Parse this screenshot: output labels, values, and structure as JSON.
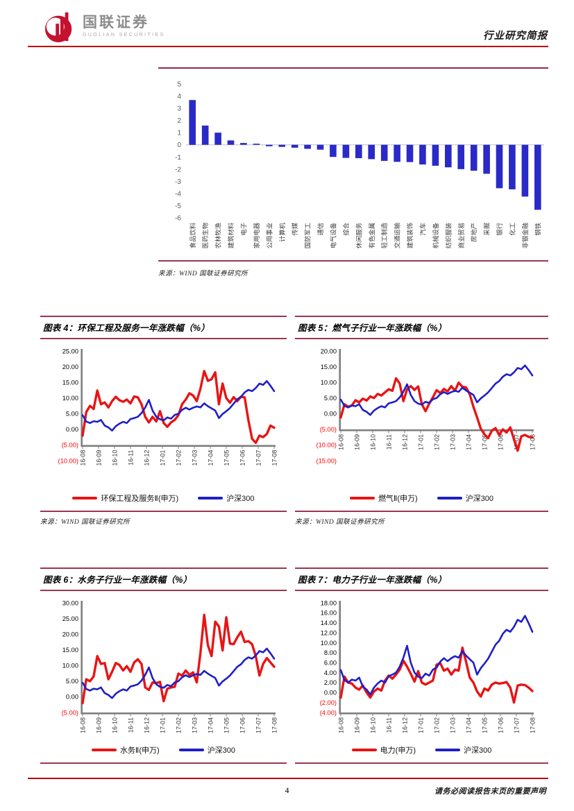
{
  "header": {
    "brand_cn": "国联证券",
    "brand_en": "GUOLIAN SECURITIES",
    "doc_type": "行业研究简报"
  },
  "source_label": "来源：WIND  国联证券研究所",
  "footer": {
    "page_number": "4",
    "disclaimer": "请务必阅读报告末页的重要声明"
  },
  "colors": {
    "header_rule": "#c00000",
    "box_border": "#9c3550",
    "bar_fill": "#2a2ac8",
    "series_red": "#e81414",
    "series_blue": "#1e1ec8",
    "negative_tick": "#ff0000",
    "axis_gray": "#7f7f7f"
  },
  "figures": [
    {
      "id": "4",
      "title": "图表 4：环保工程及服务一年涨跌幅（%）"
    },
    {
      "id": "5",
      "title": "图表 5：燃气子行业一年涨跌幅（%）"
    },
    {
      "id": "6",
      "title": "图表 6：水务子行业一年涨跌幅（%）"
    },
    {
      "id": "7",
      "title": "图表 7：电力子行业一年涨跌幅（%）"
    }
  ],
  "chart_data": [
    {
      "type": "bar",
      "title": "",
      "categories": [
        "食品饮料",
        "医药生物",
        "农林牧渔",
        "建筑材料",
        "电子",
        "家用电器",
        "公用事业",
        "计算机",
        "传媒",
        "国防军工",
        "通信",
        "电气设备",
        "综合",
        "休闲服务",
        "有色金属",
        "轻工制造",
        "交通运输",
        "建筑装饰",
        "汽车",
        "机械设备",
        "纺织服装",
        "商业贸易",
        "房地产",
        "采掘",
        "银行",
        "化工",
        "非银金融",
        "钢铁"
      ],
      "values": [
        3.68,
        1.58,
        1.0,
        0.36,
        0.15,
        0.09,
        -0.12,
        -0.17,
        -0.24,
        -0.33,
        -0.4,
        -1.0,
        -1.08,
        -1.1,
        -1.18,
        -1.32,
        -1.4,
        -1.42,
        -1.62,
        -1.72,
        -1.85,
        -2.0,
        -2.13,
        -2.38,
        -3.57,
        -3.66,
        -4.26,
        -5.34
      ],
      "ylim": [
        -6,
        5
      ],
      "ystep": 1,
      "bar_color": "#2a2ac8",
      "grid": false,
      "legend": "none"
    },
    {
      "type": "line",
      "title": "环保工程及服务一年涨跌幅（%）",
      "x_labels": [
        "16-08",
        "16-09",
        "16-10",
        "16-11",
        "16-12",
        "17-01",
        "17-02",
        "17-03",
        "17-04",
        "17-05",
        "17-06",
        "17-07",
        "17-08"
      ],
      "ymin": -10,
      "ymax": 25,
      "ystep": 5,
      "axis_cross_y": -5,
      "legend_position": "bottom",
      "series": [
        {
          "name": "环保工程及服务Ⅱ(申万)",
          "color": "#e81414",
          "values": [
            -2.0,
            5.5,
            7.5,
            6.5,
            12.4,
            8.0,
            8.6,
            7.0,
            9.0,
            10.4,
            9.3,
            8.8,
            9.5,
            8.3,
            10.5,
            10.2,
            8.0,
            4.0,
            2.2,
            4.0,
            2.5,
            5.8,
            2.0,
            0.8,
            2.2,
            3.0,
            4.5,
            8.0,
            9.5,
            11.5,
            10.8,
            9.0,
            13.0,
            18.6,
            15.5,
            16.0,
            18.2,
            8.0,
            14.6,
            10.0,
            8.5,
            10.3,
            9.0,
            10.4,
            10.2,
            3.0,
            -3.0,
            -4.3,
            -2.0,
            -2.5,
            -1.5,
            1.2,
            0.5
          ]
        },
        {
          "name": "沪深300",
          "color": "#1e1ec8",
          "values": [
            4.5,
            2.5,
            2.0,
            2.6,
            2.4,
            3.0,
            1.2,
            0.6,
            -0.4,
            1.0,
            1.8,
            2.4,
            2.0,
            3.3,
            3.6,
            4.0,
            5.2,
            7.0,
            9.4,
            6.0,
            4.0,
            3.2,
            2.9,
            3.8,
            3.4,
            4.6,
            5.0,
            6.2,
            6.9,
            6.3,
            6.9,
            7.3,
            7.0,
            8.3,
            7.4,
            6.7,
            6.0,
            3.6,
            4.9,
            5.8,
            6.8,
            8.2,
            9.6,
            10.4,
            11.8,
            12.6,
            12.2,
            13.2,
            14.6,
            14.2,
            15.4,
            13.9,
            12.2
          ]
        }
      ]
    },
    {
      "type": "line",
      "title": "燃气子行业一年涨跌幅（%）",
      "x_labels": [
        "16-08",
        "16-09",
        "16-10",
        "16-11",
        "16-12",
        "17-01",
        "17-02",
        "17-03",
        "17-04",
        "17-05",
        "17-06",
        "17-07",
        "17-08"
      ],
      "ymin": -15,
      "ymax": 20,
      "ystep": 5,
      "axis_cross_y": -5,
      "legend_position": "bottom",
      "series": [
        {
          "name": "燃气Ⅱ(申万)",
          "color": "#e81414",
          "values": [
            -1.2,
            3.0,
            2.2,
            2.6,
            4.3,
            3.6,
            4.8,
            4.2,
            5.5,
            5.0,
            6.3,
            5.8,
            6.8,
            7.8,
            7.3,
            11.3,
            9.6,
            4.0,
            7.8,
            8.8,
            7.6,
            8.7,
            3.0,
            0.8,
            3.2,
            5.2,
            7.5,
            6.6,
            7.9,
            7.1,
            8.8,
            7.3,
            9.9,
            8.6,
            8.4,
            6.2,
            2.2,
            -1.2,
            -4.8,
            -6.6,
            -7.8,
            -5.4,
            -4.6,
            -6.8,
            -5.0,
            -6.0,
            -4.4,
            -8.2,
            -11.8,
            -7.2,
            -6.8,
            -7.4,
            -7.6
          ]
        },
        {
          "name": "沪深300",
          "color": "#1e1ec8",
          "values": [
            4.5,
            2.5,
            2.0,
            2.6,
            2.4,
            3.0,
            1.2,
            0.6,
            -0.4,
            1.0,
            1.8,
            2.4,
            2.0,
            3.3,
            3.6,
            4.0,
            5.2,
            7.0,
            9.4,
            6.0,
            4.0,
            3.2,
            2.9,
            3.8,
            3.4,
            4.6,
            5.0,
            6.2,
            6.9,
            6.3,
            6.9,
            7.3,
            7.0,
            8.3,
            7.4,
            6.7,
            6.0,
            3.6,
            4.9,
            5.8,
            6.8,
            8.2,
            9.6,
            10.4,
            11.8,
            12.6,
            12.2,
            13.2,
            14.6,
            14.2,
            15.4,
            13.9,
            12.2
          ]
        }
      ]
    },
    {
      "type": "line",
      "title": "水务子行业一年涨跌幅（%）",
      "x_labels": [
        "16-08",
        "16-09",
        "16-10",
        "16-11",
        "16-12",
        "17-01",
        "17-02",
        "17-03",
        "17-04",
        "17-05",
        "17-06",
        "17-07",
        "17-08"
      ],
      "ymin": -5,
      "ymax": 30,
      "ystep": 5,
      "axis_cross_y": -5,
      "legend_position": "bottom",
      "series": [
        {
          "name": "水务Ⅱ(申万)",
          "color": "#e81414",
          "values": [
            -2.0,
            5.6,
            5.0,
            6.5,
            13.0,
            10.5,
            10.8,
            5.6,
            8.0,
            10.8,
            10.2,
            8.4,
            9.8,
            8.0,
            11.0,
            12.0,
            10.5,
            3.0,
            2.2,
            4.6,
            4.4,
            4.8,
            -1.4,
            2.6,
            3.0,
            3.2,
            7.4,
            6.8,
            8.4,
            7.0,
            7.8,
            4.6,
            14.0,
            26.2,
            16.5,
            13.0,
            24.0,
            22.5,
            14.8,
            25.4,
            17.0,
            16.8,
            19.0,
            20.8,
            17.5,
            17.8,
            16.8,
            13.0,
            6.8,
            10.5,
            12.4,
            11.0,
            9.6
          ]
        },
        {
          "name": "沪深300",
          "color": "#1e1ec8",
          "values": [
            4.5,
            2.5,
            2.0,
            2.6,
            2.4,
            3.0,
            1.2,
            0.6,
            -0.4,
            1.0,
            1.8,
            2.4,
            2.0,
            3.3,
            3.6,
            4.0,
            5.2,
            7.0,
            9.4,
            6.0,
            4.0,
            3.2,
            2.9,
            3.8,
            3.4,
            4.6,
            5.0,
            6.2,
            6.9,
            6.3,
            6.9,
            7.3,
            7.0,
            8.3,
            7.4,
            6.7,
            6.0,
            3.6,
            4.9,
            5.8,
            6.8,
            8.2,
            9.6,
            10.4,
            11.8,
            12.6,
            12.2,
            13.2,
            14.6,
            14.2,
            15.4,
            13.9,
            12.2
          ]
        }
      ]
    },
    {
      "type": "line",
      "title": "电力子行业一年涨跌幅（%）",
      "x_labels": [
        "16-08",
        "16-09",
        "16-10",
        "16-11",
        "16-12",
        "17-01",
        "17-02",
        "17-03",
        "17-04",
        "17-05",
        "17-06",
        "17-07",
        "17-08"
      ],
      "ymin": -4,
      "ymax": 18,
      "ystep": 2,
      "axis_cross_y": -4,
      "legend_position": "bottom",
      "series": [
        {
          "name": "电力(申万)",
          "color": "#e81414",
          "values": [
            -1.0,
            3.2,
            2.0,
            1.8,
            1.0,
            0.6,
            1.4,
            0.0,
            -1.0,
            0.2,
            0.8,
            0.4,
            2.4,
            3.4,
            2.8,
            3.6,
            4.6,
            6.4,
            5.2,
            3.8,
            2.2,
            4.3,
            2.0,
            1.6,
            2.0,
            2.4,
            5.6,
            5.9,
            4.4,
            4.8,
            3.6,
            4.6,
            4.4,
            9.0,
            6.2,
            3.0,
            2.0,
            0.2,
            -0.8,
            0.8,
            0.4,
            1.6,
            2.0,
            1.8,
            1.9,
            2.1,
            1.0,
            -2.0,
            1.4,
            1.6,
            1.5,
            1.0,
            0.3
          ]
        },
        {
          "name": "沪深300",
          "color": "#1e1ec8",
          "values": [
            4.5,
            2.5,
            2.0,
            2.6,
            2.4,
            3.0,
            1.2,
            0.6,
            -0.4,
            1.0,
            1.8,
            2.4,
            2.0,
            3.3,
            3.6,
            4.0,
            5.2,
            7.0,
            9.4,
            6.0,
            4.0,
            3.2,
            2.9,
            3.8,
            3.4,
            4.6,
            5.0,
            6.2,
            6.9,
            6.3,
            6.9,
            7.3,
            7.0,
            8.3,
            7.4,
            6.7,
            6.0,
            3.6,
            4.9,
            5.8,
            6.8,
            8.2,
            9.6,
            10.4,
            11.8,
            12.6,
            12.2,
            13.2,
            14.6,
            14.2,
            15.4,
            13.9,
            12.2
          ]
        }
      ]
    }
  ]
}
